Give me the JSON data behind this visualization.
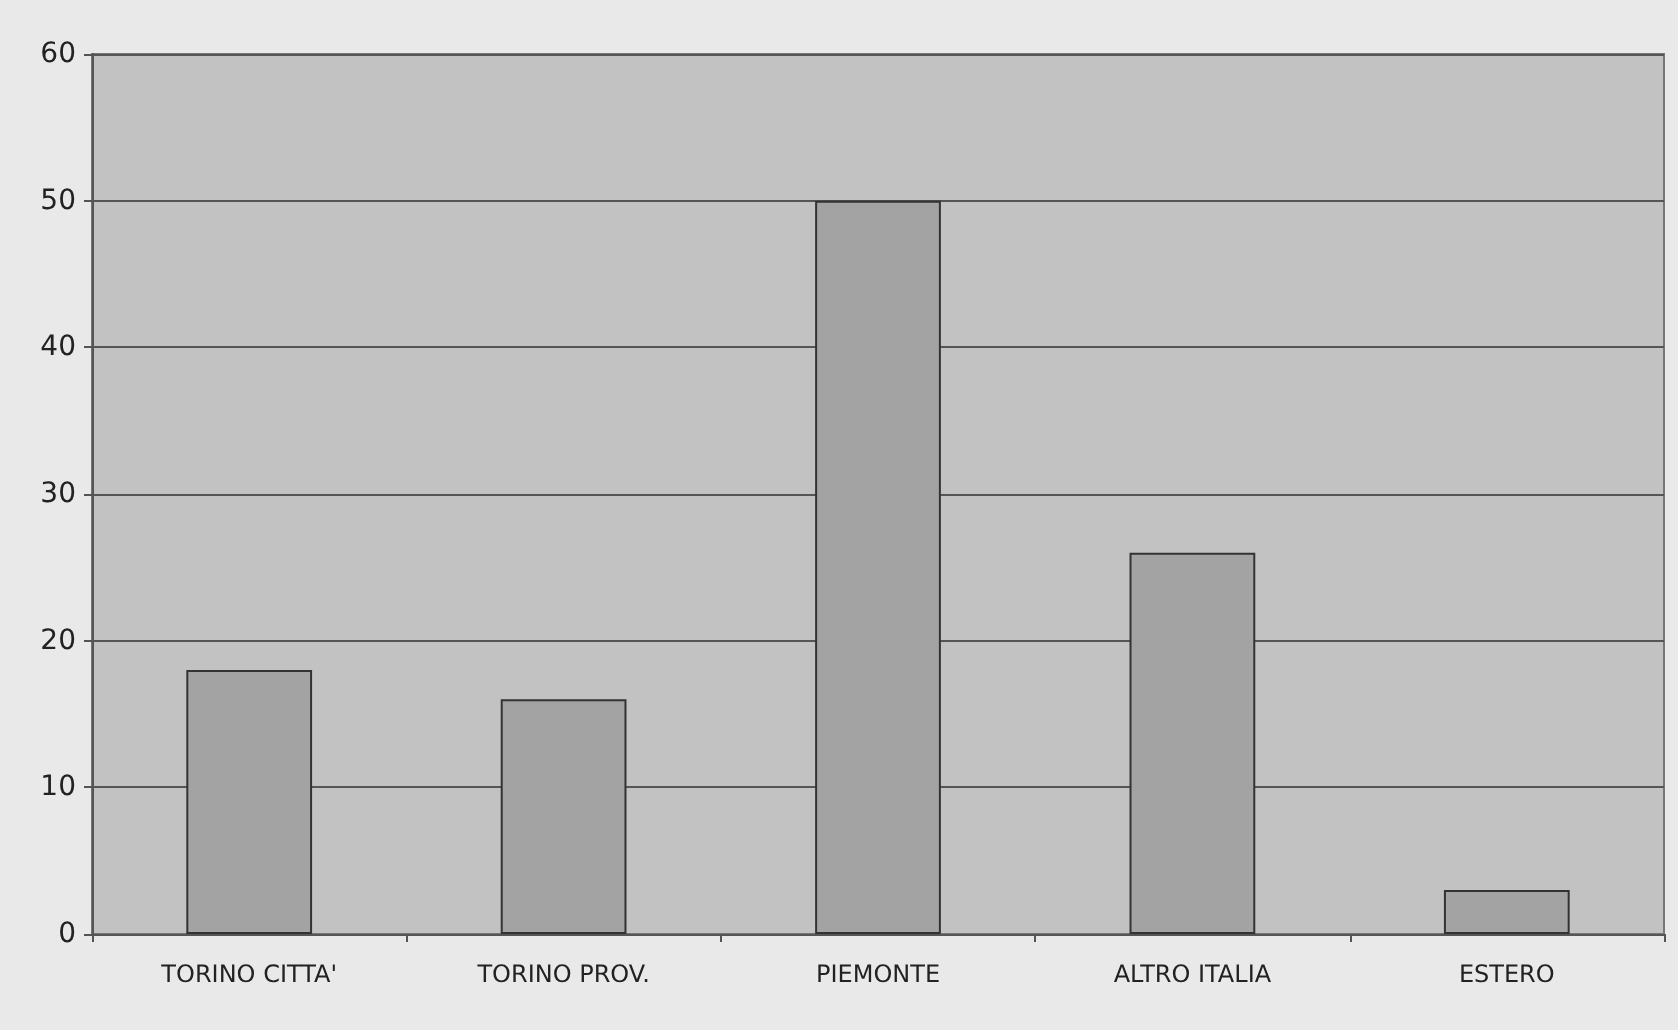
{
  "chart_data": {
    "type": "bar",
    "categories": [
      "TORINO CITTA'",
      "TORINO PROV.",
      "PIEMONTE",
      "ALTRO ITALIA",
      "ESTERO"
    ],
    "values": [
      18,
      16,
      50,
      26,
      3
    ],
    "color": "#a3a3a3",
    "ylim": [
      0,
      60
    ],
    "yticks": [
      0,
      10,
      20,
      30,
      40,
      50,
      60
    ],
    "grid": "y"
  }
}
